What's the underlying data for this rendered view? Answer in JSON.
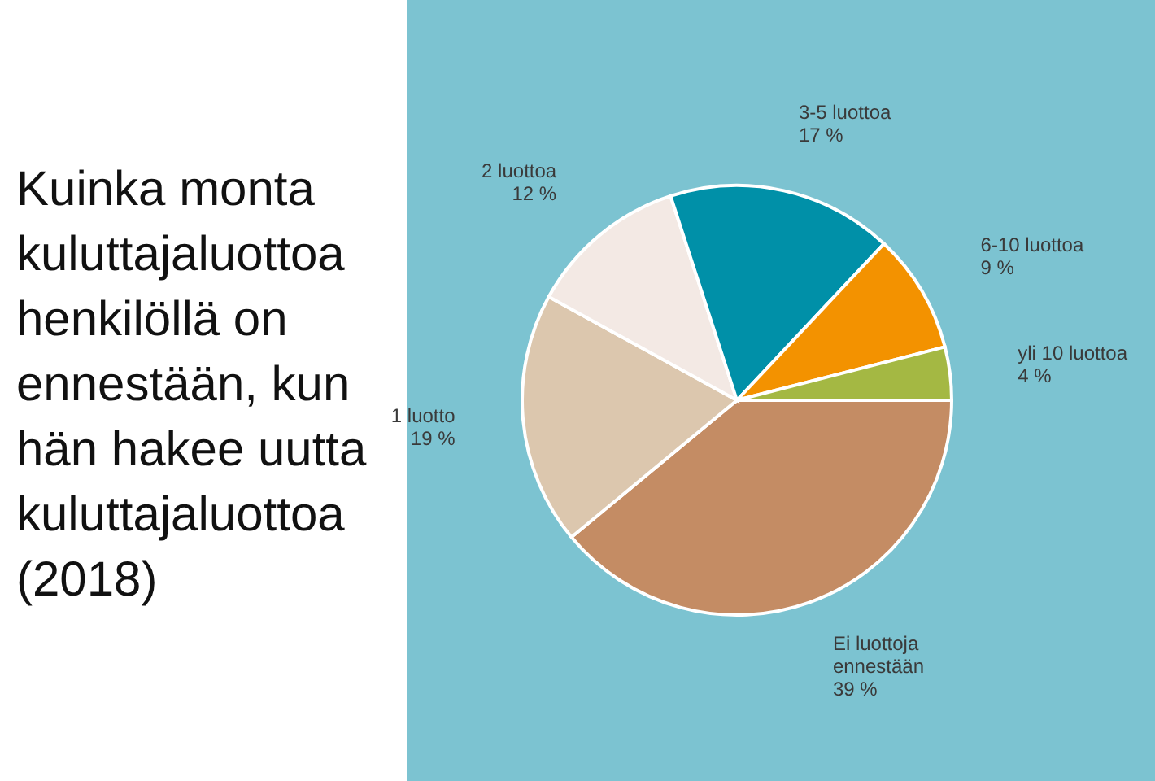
{
  "chart_data": {
    "type": "pie",
    "title": "Kuinka monta kuluttajaluottoa henkilöllä on ennestään, kun hän hakee uutta kuluttajaluottoa (2018)",
    "categories": [
      "Ei luottoja ennestään",
      "1 luotto",
      "2 luottoa",
      "3-5 luottoa",
      "6-10 luottoa",
      "yli 10 luottoa"
    ],
    "values": [
      39,
      19,
      12,
      17,
      9,
      4
    ],
    "colors": [
      "#c48c64",
      "#dcc7ae",
      "#f3e9e4",
      "#0090a8",
      "#f39200",
      "#a4b843"
    ],
    "value_labels": [
      "39 %",
      "19 %",
      "12 %",
      "17 %",
      "9 %",
      "4 %"
    ]
  }
}
